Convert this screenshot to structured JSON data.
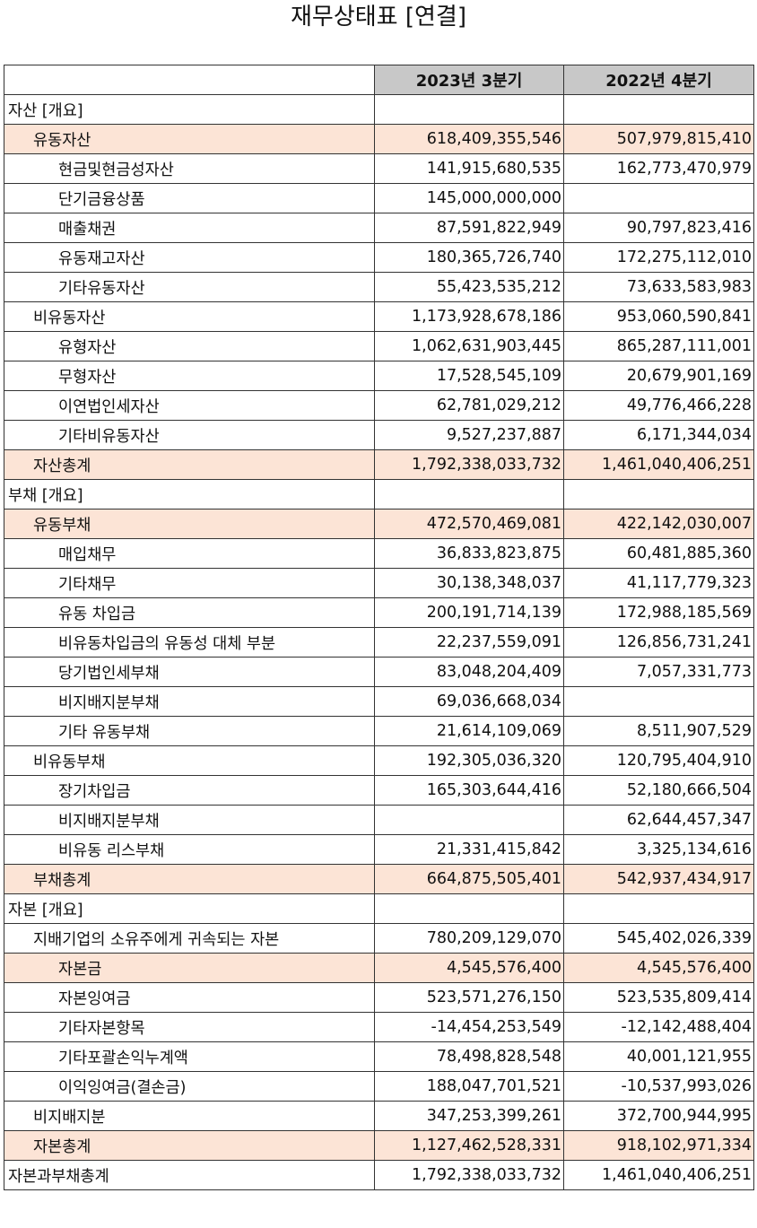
{
  "title": "재무상태표 [연결]",
  "columns": [
    "2023년 3분기",
    "2022년 4분기"
  ],
  "rows": [
    {
      "label": "자산 [개요]",
      "level": 0,
      "hl": false,
      "v1": "",
      "v2": ""
    },
    {
      "label": "유동자산",
      "level": 1,
      "hl": true,
      "v1": "618,409,355,546",
      "v2": "507,979,815,410"
    },
    {
      "label": "현금및현금성자산",
      "level": 2,
      "hl": false,
      "v1": "141,915,680,535",
      "v2": "162,773,470,979"
    },
    {
      "label": "단기금융상품",
      "level": 2,
      "hl": false,
      "v1": "145,000,000,000",
      "v2": ""
    },
    {
      "label": "매출채권",
      "level": 2,
      "hl": false,
      "v1": "87,591,822,949",
      "v2": "90,797,823,416"
    },
    {
      "label": "유동재고자산",
      "level": 2,
      "hl": false,
      "v1": "180,365,726,740",
      "v2": "172,275,112,010"
    },
    {
      "label": "기타유동자산",
      "level": 2,
      "hl": false,
      "v1": "55,423,535,212",
      "v2": "73,633,583,983"
    },
    {
      "label": "비유동자산",
      "level": 1,
      "hl": false,
      "v1": "1,173,928,678,186",
      "v2": "953,060,590,841"
    },
    {
      "label": "유형자산",
      "level": 2,
      "hl": false,
      "v1": "1,062,631,903,445",
      "v2": "865,287,111,001"
    },
    {
      "label": "무형자산",
      "level": 2,
      "hl": false,
      "v1": "17,528,545,109",
      "v2": "20,679,901,169"
    },
    {
      "label": "이연법인세자산",
      "level": 2,
      "hl": false,
      "v1": "62,781,029,212",
      "v2": "49,776,466,228"
    },
    {
      "label": "기타비유동자산",
      "level": 2,
      "hl": false,
      "v1": "9,527,237,887",
      "v2": "6,171,344,034"
    },
    {
      "label": "자산총계",
      "level": 1,
      "hl": true,
      "v1": "1,792,338,033,732",
      "v2": "1,461,040,406,251"
    },
    {
      "label": "부채 [개요]",
      "level": 0,
      "hl": false,
      "v1": "",
      "v2": ""
    },
    {
      "label": "유동부채",
      "level": 1,
      "hl": true,
      "v1": "472,570,469,081",
      "v2": "422,142,030,007"
    },
    {
      "label": "매입채무",
      "level": 2,
      "hl": false,
      "v1": "36,833,823,875",
      "v2": "60,481,885,360"
    },
    {
      "label": "기타채무",
      "level": 2,
      "hl": false,
      "v1": "30,138,348,037",
      "v2": "41,117,779,323"
    },
    {
      "label": "유동 차입금",
      "level": 2,
      "hl": false,
      "v1": "200,191,714,139",
      "v2": "172,988,185,569"
    },
    {
      "label": "비유동차입금의 유동성 대체 부분",
      "level": 2,
      "hl": false,
      "v1": "22,237,559,091",
      "v2": "126,856,731,241"
    },
    {
      "label": "당기법인세부채",
      "level": 2,
      "hl": false,
      "v1": "83,048,204,409",
      "v2": "7,057,331,773"
    },
    {
      "label": "비지배지분부채",
      "level": 2,
      "hl": false,
      "v1": "69,036,668,034",
      "v2": ""
    },
    {
      "label": "기타 유동부채",
      "level": 2,
      "hl": false,
      "v1": "21,614,109,069",
      "v2": "8,511,907,529"
    },
    {
      "label": "비유동부채",
      "level": 1,
      "hl": false,
      "v1": "192,305,036,320",
      "v2": "120,795,404,910"
    },
    {
      "label": "장기차입금",
      "level": 2,
      "hl": false,
      "v1": "165,303,644,416",
      "v2": "52,180,666,504"
    },
    {
      "label": "비지배지분부채",
      "level": 2,
      "hl": false,
      "v1": "",
      "v2": "62,644,457,347"
    },
    {
      "label": "비유동 리스부채",
      "level": 2,
      "hl": false,
      "v1": "21,331,415,842",
      "v2": "3,325,134,616"
    },
    {
      "label": "부채총계",
      "level": 1,
      "hl": true,
      "v1": "664,875,505,401",
      "v2": "542,937,434,917"
    },
    {
      "label": "자본 [개요]",
      "level": 0,
      "hl": false,
      "v1": "",
      "v2": ""
    },
    {
      "label": "지배기업의 소유주에게 귀속되는 자본",
      "level": 1,
      "hl": false,
      "v1": "780,209,129,070",
      "v2": "545,402,026,339"
    },
    {
      "label": "자본금",
      "level": 2,
      "hl": true,
      "v1": "4,545,576,400",
      "v2": "4,545,576,400"
    },
    {
      "label": "자본잉여금",
      "level": 2,
      "hl": false,
      "v1": "523,571,276,150",
      "v2": "523,535,809,414"
    },
    {
      "label": "기타자본항목",
      "level": 2,
      "hl": false,
      "v1": "-14,454,253,549",
      "v2": "-12,142,488,404"
    },
    {
      "label": "기타포괄손익누계액",
      "level": 2,
      "hl": false,
      "v1": "78,498,828,548",
      "v2": "40,001,121,955"
    },
    {
      "label": "이익잉여금(결손금)",
      "level": 2,
      "hl": false,
      "v1": "188,047,701,521",
      "v2": "-10,537,993,026"
    },
    {
      "label": "비지배지분",
      "level": 1,
      "hl": false,
      "v1": "347,253,399,261",
      "v2": "372,700,944,995"
    },
    {
      "label": "자본총계",
      "level": 1,
      "hl": true,
      "v1": "1,127,462,528,331",
      "v2": "918,102,971,334"
    },
    {
      "label": "자본과부채총계",
      "level": 0,
      "hl": false,
      "v1": "1,792,338,033,732",
      "v2": "1,461,040,406,251"
    }
  ]
}
